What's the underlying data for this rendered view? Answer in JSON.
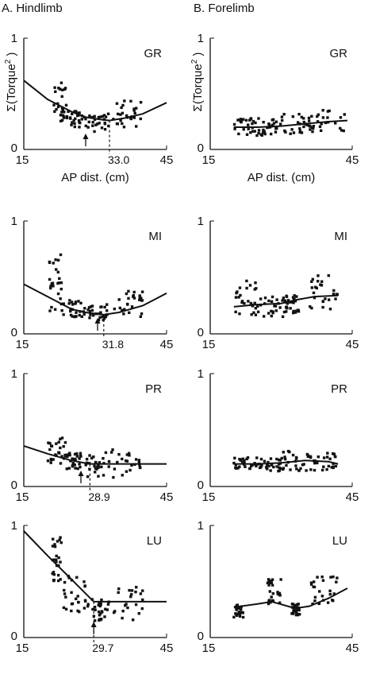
{
  "columns": [
    {
      "label": "A. Hindlimb"
    },
    {
      "label": "B. Forelimb"
    }
  ],
  "ylabel": "Σ(Torque²)",
  "ylabel_main": "Σ(Torque",
  "ylabel_sup": "2",
  "ylabel_close": " )",
  "xlabel": "AP dist. (cm)",
  "colors": {
    "ink": "#111111",
    "background": "#ffffff"
  },
  "chart_data": [
    {
      "type": "scatter",
      "panel": "A",
      "label": "GR",
      "xlim": [
        15,
        45
      ],
      "ylim": [
        0,
        1
      ],
      "xticks": [
        "15",
        "45"
      ],
      "yticks": [
        "0",
        "1"
      ],
      "xlabel": "AP dist. (cm)",
      "ylabel": "Σ(Torque²)",
      "fit": {
        "x": [
          15,
          20,
          25,
          28,
          31,
          33,
          36,
          40,
          45
        ],
        "y": [
          0.62,
          0.45,
          0.34,
          0.29,
          0.27,
          0.26,
          0.28,
          0.32,
          0.42
        ]
      },
      "annotation": {
        "arrow_x": 28,
        "dashed_x": 33.0,
        "label": "33.0"
      },
      "clusters": [
        {
          "x": [
            21,
            24
          ],
          "y": [
            0.22,
            0.6
          ]
        },
        {
          "x": [
            24,
            28
          ],
          "y": [
            0.2,
            0.35
          ]
        },
        {
          "x": [
            28,
            34
          ],
          "y": [
            0.16,
            0.32
          ]
        },
        {
          "x": [
            34,
            40
          ],
          "y": [
            0.2,
            0.44
          ]
        }
      ]
    },
    {
      "type": "scatter",
      "panel": "B",
      "label": "GR",
      "xlim": [
        15,
        45
      ],
      "ylim": [
        0,
        1
      ],
      "xticks": [
        "15",
        "45"
      ],
      "yticks": [
        "0",
        "1"
      ],
      "xlabel": "AP dist. (cm)",
      "ylabel": "Σ(Torque²)",
      "fit": {
        "x": [
          20,
          25,
          30,
          35,
          40,
          44
        ],
        "y": [
          0.2,
          0.2,
          0.21,
          0.23,
          0.25,
          0.26
        ]
      },
      "annotation": null,
      "clusters": [
        {
          "x": [
            20,
            25
          ],
          "y": [
            0.12,
            0.28
          ]
        },
        {
          "x": [
            25,
            30
          ],
          "y": [
            0.12,
            0.28
          ]
        },
        {
          "x": [
            30,
            36
          ],
          "y": [
            0.14,
            0.32
          ]
        },
        {
          "x": [
            36,
            44
          ],
          "y": [
            0.15,
            0.36
          ]
        }
      ]
    },
    {
      "type": "scatter",
      "panel": "A",
      "label": "MI",
      "xlim": [
        15,
        45
      ],
      "ylim": [
        0,
        1
      ],
      "xticks": [
        "15",
        "45"
      ],
      "yticks": [
        "0",
        "1"
      ],
      "xlabel": "",
      "ylabel": "",
      "fit": {
        "x": [
          15,
          20,
          25,
          28,
          31.8,
          35,
          40,
          45
        ],
        "y": [
          0.44,
          0.33,
          0.22,
          0.19,
          0.17,
          0.19,
          0.25,
          0.36
        ]
      },
      "annotation": {
        "arrow_x": 30.5,
        "dashed_x": 31.8,
        "label": "31.8"
      },
      "clusters": [
        {
          "x": [
            20,
            23
          ],
          "y": [
            0.2,
            0.72
          ]
        },
        {
          "x": [
            23,
            28
          ],
          "y": [
            0.15,
            0.3
          ]
        },
        {
          "x": [
            28,
            33
          ],
          "y": [
            0.12,
            0.26
          ]
        },
        {
          "x": [
            34,
            40
          ],
          "y": [
            0.15,
            0.38
          ]
        }
      ]
    },
    {
      "type": "scatter",
      "panel": "B",
      "label": "MI",
      "xlim": [
        15,
        45
      ],
      "ylim": [
        0,
        1
      ],
      "xticks": [
        "15",
        "45"
      ],
      "yticks": [
        "0",
        "1"
      ],
      "xlabel": "",
      "ylabel": "",
      "fit": {
        "x": [
          20,
          25,
          30,
          33,
          37,
          42
        ],
        "y": [
          0.24,
          0.26,
          0.27,
          0.3,
          0.33,
          0.34
        ]
      },
      "annotation": null,
      "clusters": [
        {
          "x": [
            20,
            25
          ],
          "y": [
            0.15,
            0.48
          ]
        },
        {
          "x": [
            25,
            31
          ],
          "y": [
            0.15,
            0.35
          ]
        },
        {
          "x": [
            31,
            34
          ],
          "y": [
            0.18,
            0.35
          ]
        },
        {
          "x": [
            36,
            42
          ],
          "y": [
            0.22,
            0.55
          ]
        }
      ]
    },
    {
      "type": "scatter",
      "panel": "A",
      "label": "PR",
      "xlim": [
        15,
        45
      ],
      "ylim": [
        0,
        1
      ],
      "xticks": [
        "15",
        "45"
      ],
      "yticks": [
        "0",
        "1"
      ],
      "xlabel": "",
      "ylabel": "",
      "fit": {
        "x": [
          15,
          20,
          25,
          28.9,
          33,
          38,
          45
        ],
        "y": [
          0.36,
          0.29,
          0.23,
          0.2,
          0.2,
          0.2,
          0.2
        ]
      },
      "annotation": {
        "arrow_x": 27,
        "dashed_x": 28.9,
        "label": "28.9"
      },
      "clusters": [
        {
          "x": [
            20,
            24
          ],
          "y": [
            0.2,
            0.44
          ]
        },
        {
          "x": [
            24,
            27
          ],
          "y": [
            0.15,
            0.3
          ]
        },
        {
          "x": [
            28,
            32
          ],
          "y": [
            0.08,
            0.28
          ]
        },
        {
          "x": [
            32,
            40
          ],
          "y": [
            0.08,
            0.34
          ]
        }
      ]
    },
    {
      "type": "scatter",
      "panel": "B",
      "label": "PR",
      "xlim": [
        15,
        45
      ],
      "ylim": [
        0,
        1
      ],
      "xticks": [
        "15",
        "45"
      ],
      "yticks": [
        "0",
        "1"
      ],
      "xlabel": "",
      "ylabel": "",
      "fit": {
        "x": [
          20,
          25,
          30,
          35,
          40,
          42
        ],
        "y": [
          0.2,
          0.2,
          0.21,
          0.23,
          0.22,
          0.2
        ]
      },
      "annotation": null,
      "clusters": [
        {
          "x": [
            20,
            25
          ],
          "y": [
            0.15,
            0.26
          ]
        },
        {
          "x": [
            25,
            30
          ],
          "y": [
            0.13,
            0.26
          ]
        },
        {
          "x": [
            30,
            36
          ],
          "y": [
            0.14,
            0.32
          ]
        },
        {
          "x": [
            36,
            42
          ],
          "y": [
            0.14,
            0.3
          ]
        }
      ]
    },
    {
      "type": "scatter",
      "panel": "A",
      "label": "LU",
      "xlim": [
        15,
        45
      ],
      "ylim": [
        0,
        1
      ],
      "xticks": [
        "15",
        "45"
      ],
      "yticks": [
        "0",
        "1"
      ],
      "xlabel": "",
      "ylabel": "",
      "fit": {
        "x": [
          15,
          20,
          25,
          29.7,
          33,
          40,
          45
        ],
        "y": [
          0.95,
          0.73,
          0.52,
          0.32,
          0.32,
          0.32,
          0.32
        ]
      },
      "annotation": {
        "arrow_x": 29.7,
        "dashed_x": 29.7,
        "label": "29.7"
      },
      "clusters": [
        {
          "x": [
            21,
            23
          ],
          "y": [
            0.5,
            0.9
          ]
        },
        {
          "x": [
            23,
            28
          ],
          "y": [
            0.2,
            0.55
          ]
        },
        {
          "x": [
            28,
            32
          ],
          "y": [
            0.15,
            0.36
          ]
        },
        {
          "x": [
            32,
            40
          ],
          "y": [
            0.15,
            0.48
          ]
        }
      ]
    },
    {
      "type": "scatter",
      "panel": "B",
      "label": "LU",
      "xlim": [
        15,
        45
      ],
      "ylim": [
        0,
        1
      ],
      "xticks": [
        "15",
        "45"
      ],
      "yticks": [
        "0",
        "1"
      ],
      "xlabel": "",
      "ylabel": "",
      "fit": {
        "x": [
          20,
          25,
          28,
          33,
          36,
          40,
          44
        ],
        "y": [
          0.27,
          0.3,
          0.32,
          0.26,
          0.28,
          0.35,
          0.44
        ]
      },
      "annotation": null,
      "clusters": [
        {
          "x": [
            20,
            22
          ],
          "y": [
            0.18,
            0.3
          ]
        },
        {
          "x": [
            27,
            30
          ],
          "y": [
            0.3,
            0.55
          ]
        },
        {
          "x": [
            32,
            34
          ],
          "y": [
            0.2,
            0.3
          ]
        },
        {
          "x": [
            36,
            42
          ],
          "y": [
            0.3,
            0.55
          ]
        }
      ]
    }
  ]
}
